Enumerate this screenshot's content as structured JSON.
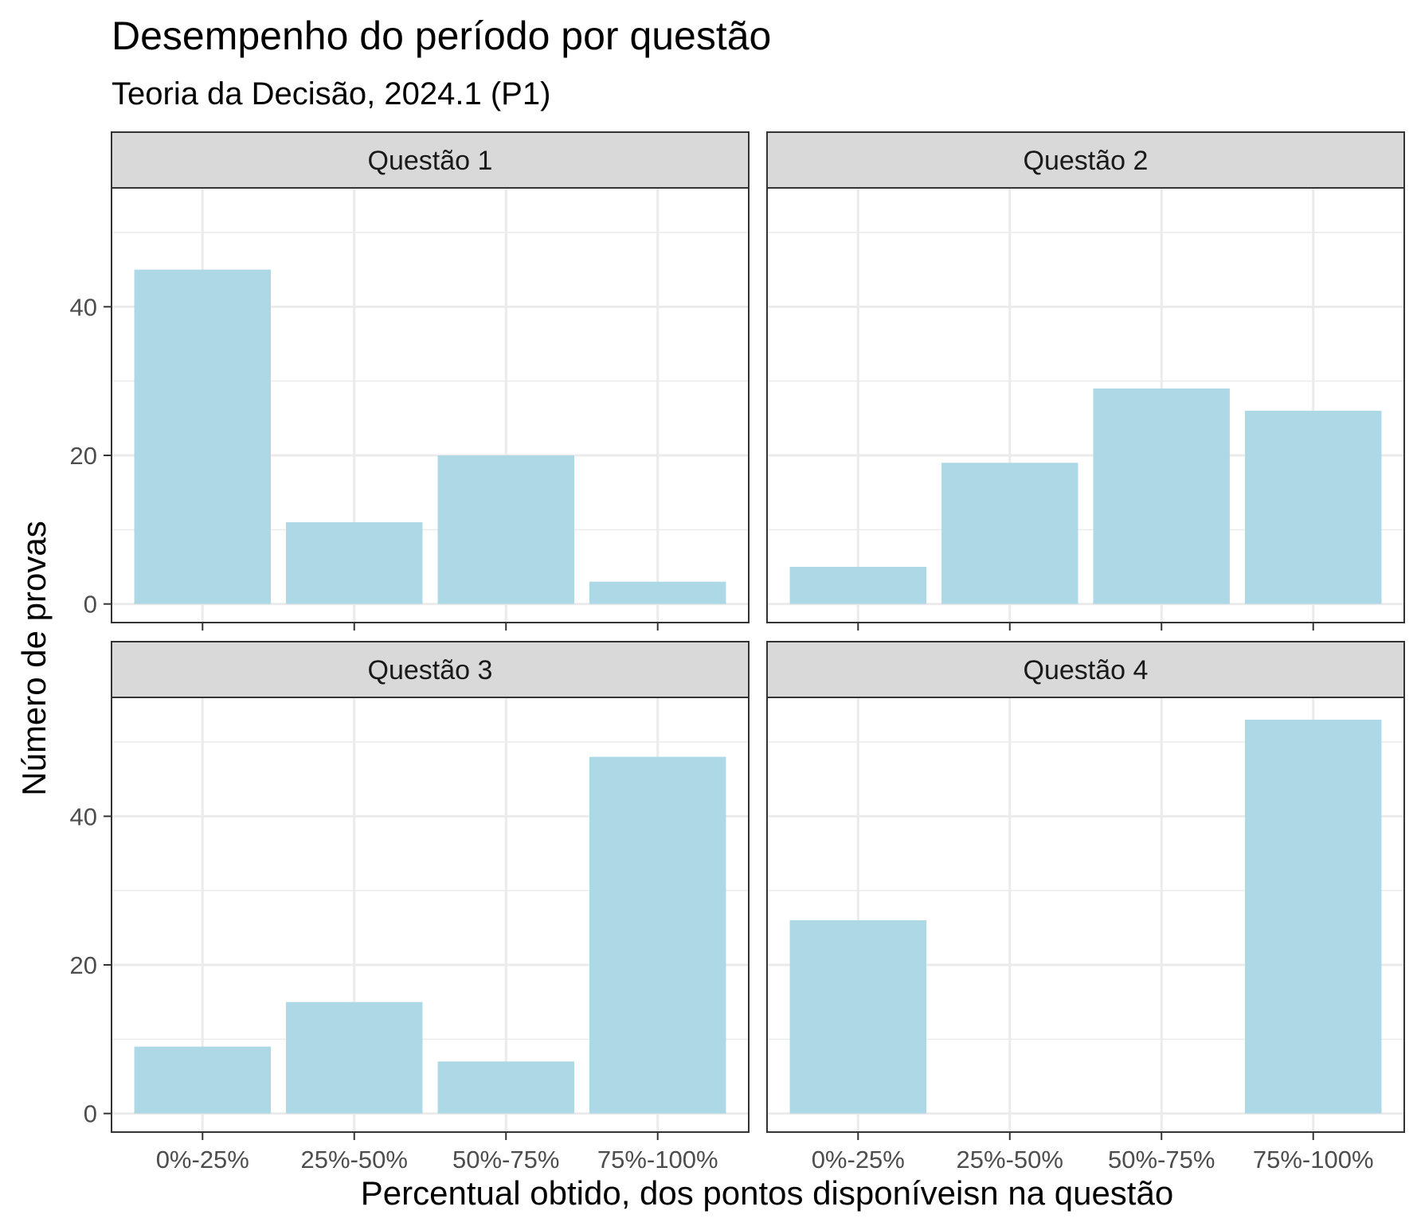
{
  "chart_data": {
    "type": "bar",
    "title": "Desempenho do período por questão",
    "subtitle": "Teoria da Decisão, 2024.1 (P1)",
    "xlabel": "Percentual obtido, dos pontos disponíveisn na questão",
    "ylabel": "Número de provas",
    "categories": [
      "0%-25%",
      "25%-50%",
      "50%-75%",
      "75%-100%"
    ],
    "ylim": [
      0,
      56
    ],
    "yticks": [
      0,
      20,
      40
    ],
    "grid": true,
    "bar_color": "#ADD8E6",
    "strip_color": "#D9D9D9",
    "facets": [
      {
        "name": "Questão 1",
        "values": [
          45,
          11,
          20,
          3
        ]
      },
      {
        "name": "Questão 2",
        "values": [
          5,
          19,
          29,
          26
        ]
      },
      {
        "name": "Questão 3",
        "values": [
          9,
          15,
          7,
          48
        ]
      },
      {
        "name": "Questão 4",
        "values": [
          26,
          0,
          0,
          53
        ]
      }
    ]
  }
}
